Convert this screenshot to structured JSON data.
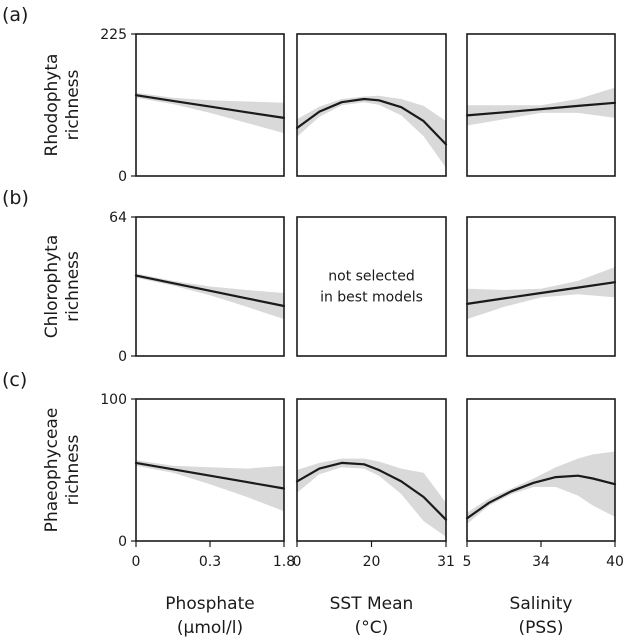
{
  "chart_data": {
    "type": "line",
    "panel_rows": [
      {
        "label": "(a)",
        "ylabel": [
          "Rhodophyta",
          "richness"
        ],
        "ylim": [
          0,
          225
        ],
        "yticks": [
          "225",
          "0"
        ],
        "cells": [
          {
            "not_selected": false,
            "x": [
              0,
              0.25,
              0.5,
              0.75,
              1.0
            ],
            "y": [
              128,
              119,
              110,
              101,
              92
            ],
            "lower": [
              124,
              114,
              100,
              84,
              68
            ],
            "upper": [
              132,
              124,
              120,
              118,
              116
            ]
          },
          {
            "not_selected": false,
            "x": [
              0,
              0.15,
              0.3,
              0.45,
              0.55,
              0.7,
              0.85,
              1.0
            ],
            "y": [
              76,
              102,
              117,
              122,
              120,
              109,
              87,
              50
            ],
            "lower": [
              62,
              94,
              112,
              117,
              113,
              96,
              63,
              13
            ],
            "upper": [
              90,
              110,
              122,
              126,
              127,
              122,
              111,
              87
            ]
          },
          {
            "not_selected": false,
            "x": [
              0,
              0.25,
              0.5,
              0.75,
              1.0
            ],
            "y": [
              96,
              101,
              106,
              111,
              116
            ],
            "lower": [
              80,
              90,
              100,
              100,
              92
            ],
            "upper": [
              112,
              112,
              112,
              122,
              140
            ]
          }
        ]
      },
      {
        "label": "(b)",
        "ylabel": [
          "Chlorophyta",
          "richness"
        ],
        "ylim": [
          0,
          64
        ],
        "yticks": [
          "64",
          "0"
        ],
        "cells": [
          {
            "not_selected": false,
            "x": [
              0,
              0.25,
              0.5,
              0.75,
              1.0
            ],
            "y": [
              37,
              33.5,
              30,
              26.5,
              23
            ],
            "lower": [
              36,
              32.4,
              28,
              22.6,
              17
            ],
            "upper": [
              38,
              34.6,
              32,
              30.4,
              29
            ]
          },
          {
            "not_selected": true,
            "text": [
              "not selected",
              "in best models"
            ]
          },
          {
            "not_selected": false,
            "x": [
              0,
              0.25,
              0.5,
              0.75,
              1.0
            ],
            "y": [
              24,
              26.5,
              29,
              31.5,
              34
            ],
            "lower": [
              17,
              22.6,
              27,
              28.4,
              27
            ],
            "upper": [
              31,
              30.4,
              31,
              34.6,
              41
            ]
          }
        ]
      },
      {
        "label": "(c)",
        "ylabel": [
          "Phaeophyceae",
          "richness"
        ],
        "ylim": [
          0,
          100
        ],
        "yticks": [
          "100",
          "0"
        ],
        "cells": [
          {
            "not_selected": false,
            "x": [
              0,
              0.25,
              0.5,
              0.75,
              1.0
            ],
            "y": [
              55,
              50.5,
              46,
              41.5,
              37
            ],
            "lower": [
              53,
              48,
              40,
              31,
              21
            ],
            "upper": [
              57,
              53,
              52,
              51,
              53
            ]
          },
          {
            "not_selected": false,
            "x": [
              0,
              0.15,
              0.3,
              0.45,
              0.55,
              0.7,
              0.85,
              1.0
            ],
            "y": [
              42,
              51,
              55,
              54,
              50,
              42,
              31,
              15
            ],
            "lower": [
              34,
              47,
              52,
              51,
              46,
              33,
              14,
              3
            ],
            "upper": [
              50,
              55,
              58,
              58,
              56,
              51,
              48,
              27
            ]
          },
          {
            "not_selected": false,
            "x": [
              0,
              0.15,
              0.3,
              0.45,
              0.6,
              0.75,
              0.85,
              1.0
            ],
            "y": [
              16,
              27,
              35,
              41,
              45,
              46,
              44,
              40
            ],
            "lower": [
              12,
              25,
              33,
              38,
              38,
              32,
              25,
              17
            ],
            "upper": [
              20,
              30,
              37,
              44,
              52,
              58,
              61,
              63
            ]
          }
        ]
      }
    ],
    "columns": [
      {
        "xlabel": [
          "Phosphate",
          "(µmol/l)"
        ],
        "xticks": [
          "0",
          "0.3",
          "1.8"
        ]
      },
      {
        "xlabel": [
          "SST Mean",
          "(°C)"
        ],
        "xticks": [
          "0",
          "20",
          "31"
        ]
      },
      {
        "xlabel": [
          "Salinity",
          "(PSS)"
        ],
        "xticks": [
          "5",
          "34",
          "40"
        ]
      }
    ],
    "colors": {
      "line": "#1a1a1a",
      "band": "#d9d9d9",
      "frame": "#1a1a1a"
    }
  }
}
